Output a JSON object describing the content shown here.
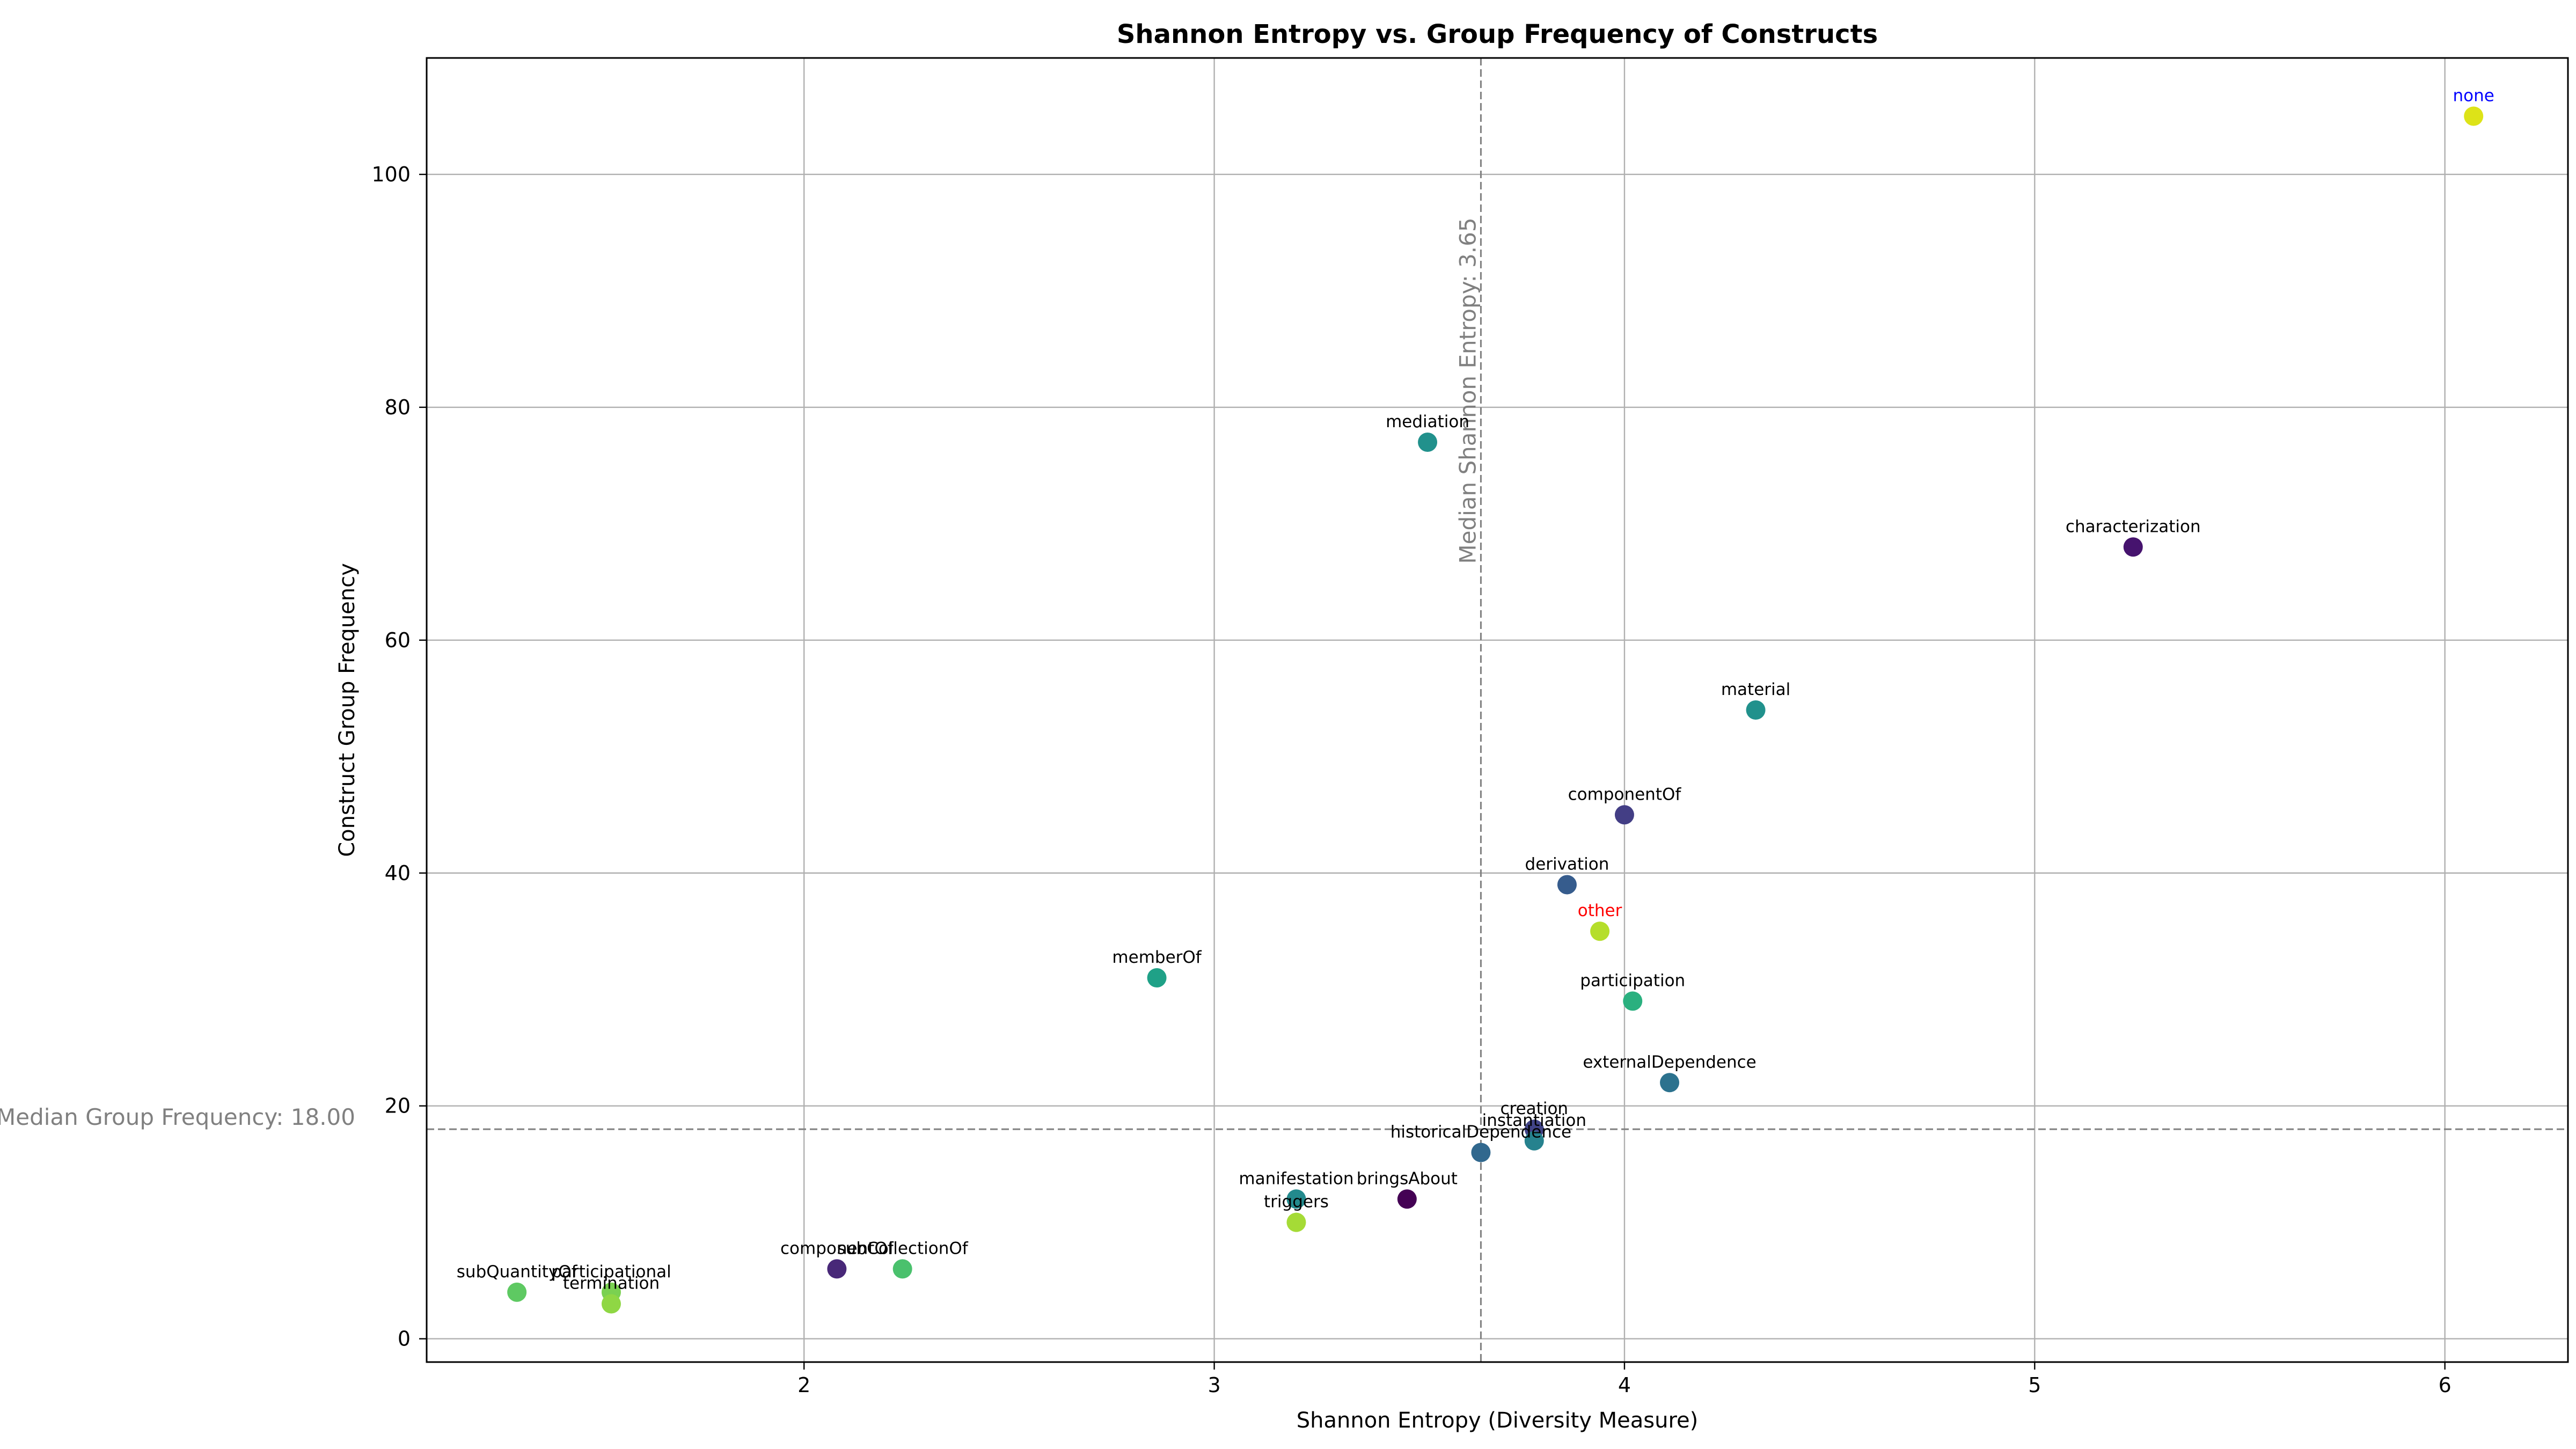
{
  "chart_data": {
    "type": "scatter",
    "title": "Shannon Entropy vs. Group Frequency of Constructs",
    "xlabel": "Shannon Entropy (Diversity Measure)",
    "ylabel": "Construct Group Frequency",
    "xlim": [
      1.08,
      6.3
    ],
    "ylim": [
      -2,
      110
    ],
    "xticks": [
      2,
      3,
      4,
      5,
      6
    ],
    "yticks": [
      0,
      20,
      40,
      60,
      80,
      100
    ],
    "grid": true,
    "colormap": "viridis",
    "points": [
      {
        "label": "none",
        "x": 6.07,
        "y": 105,
        "color": "#dde318",
        "label_color": "#0000ff"
      },
      {
        "label": "characterization",
        "x": 5.24,
        "y": 68,
        "color": "#46136e",
        "label_color": "#000000"
      },
      {
        "label": "mediation",
        "x": 3.52,
        "y": 77,
        "color": "#21918c",
        "label_color": "#000000"
      },
      {
        "label": "material",
        "x": 4.32,
        "y": 54,
        "color": "#21918c",
        "label_color": "#000000"
      },
      {
        "label": "componentOf",
        "x": 4.0,
        "y": 45,
        "color": "#433e85",
        "label_color": "#000000"
      },
      {
        "label": "derivation",
        "x": 3.86,
        "y": 39,
        "color": "#365c8d",
        "label_color": "#000000"
      },
      {
        "label": "other",
        "x": 3.94,
        "y": 35,
        "color": "#b5de2b",
        "label_color": "#ff0000"
      },
      {
        "label": "memberOf",
        "x": 2.86,
        "y": 31,
        "color": "#1fa187",
        "label_color": "#000000"
      },
      {
        "label": "participation",
        "x": 4.02,
        "y": 29,
        "color": "#2ab07f",
        "label_color": "#000000"
      },
      {
        "label": "externalDependence",
        "x": 4.11,
        "y": 22,
        "color": "#2c728e",
        "label_color": "#000000"
      },
      {
        "label": "creation",
        "x": 3.78,
        "y": 18,
        "color": "#414487",
        "label_color": "#000000"
      },
      {
        "label": "instantiation",
        "x": 3.78,
        "y": 17,
        "color": "#26828e",
        "label_color": "#000000"
      },
      {
        "label": "historicalDependence",
        "x": 3.65,
        "y": 16,
        "color": "#31688e",
        "label_color": "#000000"
      },
      {
        "label": "manifestation",
        "x": 3.2,
        "y": 12,
        "color": "#238a8d",
        "label_color": "#000000"
      },
      {
        "label": "bringsAbout",
        "x": 3.47,
        "y": 12,
        "color": "#440154",
        "label_color": "#000000"
      },
      {
        "label": "triggers",
        "x": 3.2,
        "y": 10,
        "color": "#a5db36",
        "label_color": "#000000"
      },
      {
        "label": "componentOf",
        "x": 2.08,
        "y": 6,
        "color": "#482878",
        "label_color": "#000000"
      },
      {
        "label": "subCollectionOf",
        "x": 2.24,
        "y": 6,
        "color": "#4ac16d",
        "label_color": "#000000"
      },
      {
        "label": "subQuantityOf",
        "x": 1.3,
        "y": 4,
        "color": "#5ec962",
        "label_color": "#000000"
      },
      {
        "label": "participational",
        "x": 1.53,
        "y": 4,
        "color": "#7ad151",
        "label_color": "#000000"
      },
      {
        "label": "termination",
        "x": 1.53,
        "y": 3,
        "color": "#8fd744",
        "label_color": "#000000"
      }
    ],
    "median_x": {
      "value": 3.65,
      "label": "Median Shannon Entropy: 3.65"
    },
    "median_y": {
      "value": 18.0,
      "label": "Median Group Frequency: 18.00"
    }
  }
}
